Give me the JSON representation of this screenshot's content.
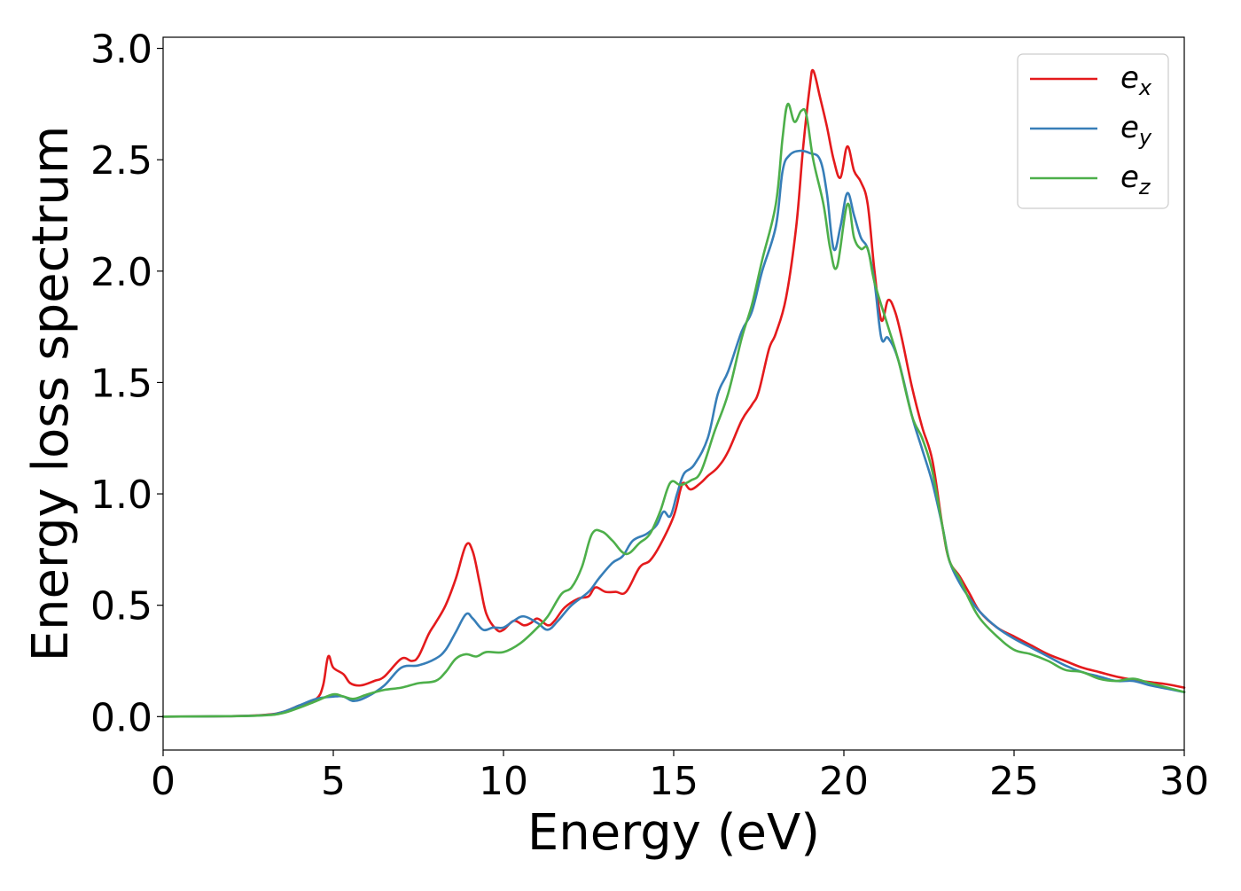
{
  "chart_data": {
    "type": "line",
    "title": "",
    "xlabel": "Energy (eV)",
    "ylabel": "Energy loss spectrum",
    "xlim": [
      0,
      30
    ],
    "ylim": [
      -0.15,
      3.05
    ],
    "xticks": [
      0,
      5,
      10,
      15,
      20,
      25,
      30
    ],
    "xtick_labels": [
      "0",
      "5",
      "10",
      "15",
      "20",
      "25",
      "30"
    ],
    "yticks": [
      0.0,
      0.5,
      1.0,
      1.5,
      2.0,
      2.5,
      3.0
    ],
    "ytick_labels": [
      "0.0",
      "0.5",
      "1.0",
      "1.5",
      "2.0",
      "2.5",
      "3.0"
    ],
    "grid": false,
    "legend_position": "top-right",
    "series": [
      {
        "name": "e_x",
        "label_base": "e",
        "label_sub": "x",
        "color": "#e41a1c",
        "points": [
          [
            0,
            0
          ],
          [
            2,
            0.002
          ],
          [
            3,
            0.008
          ],
          [
            3.5,
            0.02
          ],
          [
            4,
            0.05
          ],
          [
            4.5,
            0.08
          ],
          [
            4.7,
            0.14
          ],
          [
            4.85,
            0.27
          ],
          [
            5,
            0.22
          ],
          [
            5.3,
            0.19
          ],
          [
            5.5,
            0.15
          ],
          [
            5.8,
            0.14
          ],
          [
            6.2,
            0.16
          ],
          [
            6.5,
            0.18
          ],
          [
            7,
            0.26
          ],
          [
            7.3,
            0.25
          ],
          [
            7.5,
            0.27
          ],
          [
            7.8,
            0.37
          ],
          [
            8,
            0.42
          ],
          [
            8.3,
            0.5
          ],
          [
            8.6,
            0.62
          ],
          [
            8.9,
            0.77
          ],
          [
            9.1,
            0.74
          ],
          [
            9.3,
            0.6
          ],
          [
            9.5,
            0.46
          ],
          [
            9.8,
            0.39
          ],
          [
            10,
            0.39
          ],
          [
            10.3,
            0.43
          ],
          [
            10.6,
            0.41
          ],
          [
            10.8,
            0.42
          ],
          [
            11,
            0.44
          ],
          [
            11.3,
            0.41
          ],
          [
            11.5,
            0.43
          ],
          [
            11.8,
            0.49
          ],
          [
            12.2,
            0.53
          ],
          [
            12.5,
            0.54
          ],
          [
            12.7,
            0.58
          ],
          [
            13,
            0.56
          ],
          [
            13.3,
            0.56
          ],
          [
            13.6,
            0.56
          ],
          [
            14,
            0.67
          ],
          [
            14.3,
            0.7
          ],
          [
            14.6,
            0.77
          ],
          [
            15,
            0.9
          ],
          [
            15.2,
            1.02
          ],
          [
            15.3,
            1.05
          ],
          [
            15.5,
            1.02
          ],
          [
            15.8,
            1.05
          ],
          [
            16,
            1.08
          ],
          [
            16.3,
            1.12
          ],
          [
            16.6,
            1.19
          ],
          [
            17,
            1.33
          ],
          [
            17.3,
            1.4
          ],
          [
            17.5,
            1.46
          ],
          [
            17.8,
            1.65
          ],
          [
            18,
            1.72
          ],
          [
            18.3,
            1.88
          ],
          [
            18.6,
            2.2
          ],
          [
            18.8,
            2.55
          ],
          [
            19,
            2.83
          ],
          [
            19.1,
            2.9
          ],
          [
            19.3,
            2.78
          ],
          [
            19.5,
            2.65
          ],
          [
            19.7,
            2.5
          ],
          [
            19.9,
            2.42
          ],
          [
            20.1,
            2.56
          ],
          [
            20.3,
            2.45
          ],
          [
            20.5,
            2.4
          ],
          [
            20.7,
            2.3
          ],
          [
            20.9,
            2.0
          ],
          [
            21.1,
            1.78
          ],
          [
            21.3,
            1.87
          ],
          [
            21.5,
            1.82
          ],
          [
            21.7,
            1.7
          ],
          [
            22,
            1.48
          ],
          [
            22.3,
            1.3
          ],
          [
            22.6,
            1.15
          ],
          [
            22.9,
            0.85
          ],
          [
            23.1,
            0.7
          ],
          [
            23.4,
            0.63
          ],
          [
            23.7,
            0.55
          ],
          [
            24,
            0.47
          ],
          [
            24.5,
            0.4
          ],
          [
            25,
            0.36
          ],
          [
            25.5,
            0.32
          ],
          [
            26,
            0.28
          ],
          [
            26.5,
            0.25
          ],
          [
            27,
            0.22
          ],
          [
            27.5,
            0.2
          ],
          [
            28,
            0.18
          ],
          [
            28.5,
            0.165
          ],
          [
            29,
            0.155
          ],
          [
            29.5,
            0.145
          ],
          [
            30,
            0.13
          ]
        ]
      },
      {
        "name": "e_y",
        "label_base": "e",
        "label_sub": "y",
        "color": "#377eb8",
        "points": [
          [
            0,
            0
          ],
          [
            2,
            0.002
          ],
          [
            3,
            0.007
          ],
          [
            3.5,
            0.02
          ],
          [
            4,
            0.05
          ],
          [
            4.5,
            0.08
          ],
          [
            5,
            0.09
          ],
          [
            5.3,
            0.09
          ],
          [
            5.6,
            0.07
          ],
          [
            6,
            0.09
          ],
          [
            6.5,
            0.14
          ],
          [
            7,
            0.22
          ],
          [
            7.5,
            0.23
          ],
          [
            8,
            0.26
          ],
          [
            8.3,
            0.3
          ],
          [
            8.6,
            0.38
          ],
          [
            8.9,
            0.46
          ],
          [
            9.1,
            0.44
          ],
          [
            9.4,
            0.39
          ],
          [
            9.7,
            0.4
          ],
          [
            10,
            0.4
          ],
          [
            10.3,
            0.43
          ],
          [
            10.6,
            0.45
          ],
          [
            11,
            0.42
          ],
          [
            11.3,
            0.39
          ],
          [
            11.6,
            0.43
          ],
          [
            12,
            0.5
          ],
          [
            12.5,
            0.56
          ],
          [
            12.8,
            0.62
          ],
          [
            13.2,
            0.69
          ],
          [
            13.5,
            0.72
          ],
          [
            13.8,
            0.79
          ],
          [
            14.2,
            0.82
          ],
          [
            14.5,
            0.86
          ],
          [
            14.7,
            0.92
          ],
          [
            14.9,
            0.9
          ],
          [
            15.1,
            1.0
          ],
          [
            15.3,
            1.09
          ],
          [
            15.6,
            1.13
          ],
          [
            16,
            1.25
          ],
          [
            16.3,
            1.45
          ],
          [
            16.6,
            1.55
          ],
          [
            17,
            1.73
          ],
          [
            17.3,
            1.82
          ],
          [
            17.6,
            2.0
          ],
          [
            18,
            2.2
          ],
          [
            18.2,
            2.45
          ],
          [
            18.4,
            2.52
          ],
          [
            18.7,
            2.54
          ],
          [
            19,
            2.53
          ],
          [
            19.3,
            2.5
          ],
          [
            19.5,
            2.35
          ],
          [
            19.7,
            2.1
          ],
          [
            19.9,
            2.2
          ],
          [
            20.1,
            2.35
          ],
          [
            20.3,
            2.25
          ],
          [
            20.5,
            2.15
          ],
          [
            20.7,
            2.1
          ],
          [
            20.9,
            1.95
          ],
          [
            21.1,
            1.7
          ],
          [
            21.3,
            1.7
          ],
          [
            21.6,
            1.6
          ],
          [
            22,
            1.35
          ],
          [
            22.3,
            1.2
          ],
          [
            22.6,
            1.05
          ],
          [
            22.9,
            0.85
          ],
          [
            23.1,
            0.7
          ],
          [
            23.4,
            0.6
          ],
          [
            23.7,
            0.53
          ],
          [
            24,
            0.47
          ],
          [
            24.5,
            0.4
          ],
          [
            25,
            0.35
          ],
          [
            25.5,
            0.31
          ],
          [
            26,
            0.27
          ],
          [
            26.5,
            0.23
          ],
          [
            27,
            0.2
          ],
          [
            27.5,
            0.18
          ],
          [
            28,
            0.16
          ],
          [
            28.5,
            0.16
          ],
          [
            29,
            0.14
          ],
          [
            29.5,
            0.125
          ],
          [
            30,
            0.11
          ]
        ]
      },
      {
        "name": "e_z",
        "label_base": "e",
        "label_sub": "z",
        "color": "#4daf4a",
        "points": [
          [
            0,
            0
          ],
          [
            2,
            0.002
          ],
          [
            3,
            0.006
          ],
          [
            3.5,
            0.015
          ],
          [
            4,
            0.04
          ],
          [
            4.5,
            0.07
          ],
          [
            5,
            0.1
          ],
          [
            5.3,
            0.09
          ],
          [
            5.6,
            0.08
          ],
          [
            6,
            0.1
          ],
          [
            6.5,
            0.12
          ],
          [
            7,
            0.13
          ],
          [
            7.5,
            0.15
          ],
          [
            8,
            0.16
          ],
          [
            8.3,
            0.2
          ],
          [
            8.6,
            0.26
          ],
          [
            8.9,
            0.28
          ],
          [
            9.2,
            0.27
          ],
          [
            9.5,
            0.29
          ],
          [
            10,
            0.29
          ],
          [
            10.5,
            0.33
          ],
          [
            11,
            0.4
          ],
          [
            11.3,
            0.45
          ],
          [
            11.7,
            0.55
          ],
          [
            12,
            0.58
          ],
          [
            12.3,
            0.67
          ],
          [
            12.6,
            0.82
          ],
          [
            12.9,
            0.83
          ],
          [
            13.2,
            0.79
          ],
          [
            13.6,
            0.73
          ],
          [
            14,
            0.78
          ],
          [
            14.3,
            0.82
          ],
          [
            14.6,
            0.92
          ],
          [
            14.9,
            1.05
          ],
          [
            15.2,
            1.04
          ],
          [
            15.5,
            1.06
          ],
          [
            15.8,
            1.1
          ],
          [
            16.2,
            1.28
          ],
          [
            16.6,
            1.45
          ],
          [
            17,
            1.7
          ],
          [
            17.3,
            1.85
          ],
          [
            17.6,
            2.05
          ],
          [
            18,
            2.3
          ],
          [
            18.2,
            2.6
          ],
          [
            18.35,
            2.75
          ],
          [
            18.55,
            2.67
          ],
          [
            18.75,
            2.72
          ],
          [
            18.9,
            2.7
          ],
          [
            19.1,
            2.5
          ],
          [
            19.4,
            2.3
          ],
          [
            19.6,
            2.1
          ],
          [
            19.8,
            2.02
          ],
          [
            20.1,
            2.3
          ],
          [
            20.3,
            2.15
          ],
          [
            20.5,
            2.1
          ],
          [
            20.7,
            2.1
          ],
          [
            20.9,
            1.95
          ],
          [
            21.3,
            1.75
          ],
          [
            21.6,
            1.6
          ],
          [
            22,
            1.35
          ],
          [
            22.3,
            1.25
          ],
          [
            22.6,
            1.1
          ],
          [
            22.9,
            0.85
          ],
          [
            23.1,
            0.7
          ],
          [
            23.4,
            0.62
          ],
          [
            23.7,
            0.52
          ],
          [
            24,
            0.44
          ],
          [
            24.5,
            0.36
          ],
          [
            25,
            0.3
          ],
          [
            25.5,
            0.28
          ],
          [
            26,
            0.25
          ],
          [
            26.5,
            0.21
          ],
          [
            27,
            0.2
          ],
          [
            27.5,
            0.17
          ],
          [
            28,
            0.16
          ],
          [
            28.5,
            0.17
          ],
          [
            29,
            0.15
          ],
          [
            29.5,
            0.13
          ],
          [
            30,
            0.11
          ]
        ]
      }
    ]
  }
}
